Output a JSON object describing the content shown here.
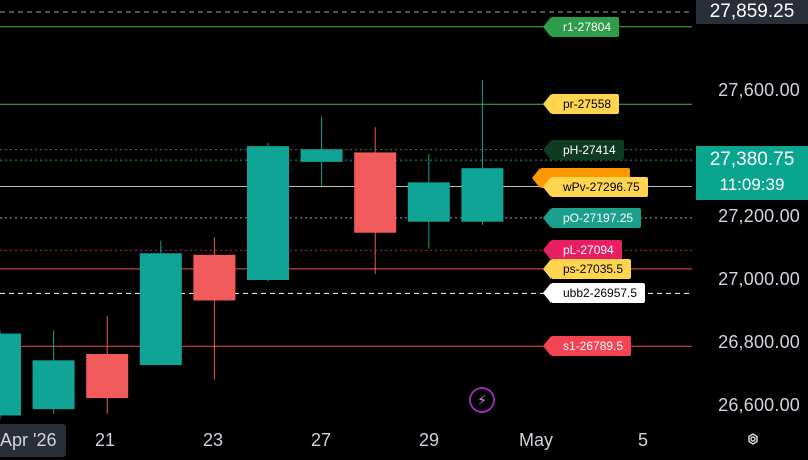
{
  "chart_data": {
    "type": "candlestick",
    "title": "",
    "xlabel": "",
    "ylabel": "",
    "ylim": [
      26540,
      27885
    ],
    "x_ticks": [
      "Apr '26",
      "21",
      "23",
      "27",
      "29",
      "May",
      "5"
    ],
    "y_ticks": [
      "26,600.00",
      "26,800.00",
      "27,000.00",
      "27,200.00",
      "27,600.00"
    ],
    "candles": [
      {
        "o": 26570,
        "h": 26840,
        "l": 26560,
        "c": 26830
      },
      {
        "o": 26590,
        "h": 26840,
        "l": 26575,
        "c": 26745
      },
      {
        "o": 26765,
        "h": 26885,
        "l": 26575,
        "c": 26625
      },
      {
        "o": 26730,
        "h": 27125,
        "l": 26730,
        "c": 27085
      },
      {
        "o": 27080,
        "h": 27135,
        "l": 26685,
        "c": 26935
      },
      {
        "o": 27000,
        "h": 27435,
        "l": 26995,
        "c": 27425
      },
      {
        "o": 27375,
        "h": 27520,
        "l": 27300,
        "c": 27415
      },
      {
        "o": 27405,
        "h": 27485,
        "l": 27020,
        "c": 27150
      },
      {
        "o": 27185,
        "h": 27400,
        "l": 27100,
        "c": 27310
      },
      {
        "o": 27185,
        "h": 27635,
        "l": 27175,
        "c": 27355
      }
    ],
    "levels": [
      {
        "label": "r1-27804",
        "value": 27804,
        "line": "#4caf50",
        "bg": "#2e9d4a",
        "fg": "#ffffff",
        "style": "solid"
      },
      {
        "label": "pr-27558",
        "value": 27558,
        "line": "#4caf50",
        "bg": "#ffd54f",
        "fg": "#000000",
        "style": "solid"
      },
      {
        "label": "pH-27414",
        "value": 27414,
        "line": "#2e7d4f",
        "bg": "#0f3b22",
        "fg": "#ffffff",
        "style": "dotted"
      },
      {
        "label": "wPv-27296.75",
        "value": 27296.75,
        "line": "#bdbdbd",
        "bg": "#ffd54f",
        "fg": "#000000",
        "style": "solid"
      },
      {
        "label": "pO-27197.25",
        "value": 27197.25,
        "line": "#9e9e9e",
        "bg": "#1aa08c",
        "fg": "#ffffff",
        "style": "dotted"
      },
      {
        "label": "pL-27094",
        "value": 27094,
        "line": "#c2185b",
        "bg": "#e91e63",
        "fg": "#ffffff",
        "style": "dotted"
      },
      {
        "label": "ps-27035.5",
        "value": 27035.5,
        "line": "#ef5350",
        "bg": "#ffd54f",
        "fg": "#000000",
        "style": "solid"
      },
      {
        "label": "ubb2-26957.5",
        "value": 26957.5,
        "line": "#ffffff",
        "bg": "#ffffff",
        "fg": "#000000",
        "style": "dashed"
      },
      {
        "label": "s1-26789.5",
        "value": 26789.5,
        "line": "#ef5350",
        "bg": "#f44352",
        "fg": "#ffffff",
        "style": "solid"
      }
    ],
    "hidden_level_tag": {
      "value": 27325,
      "bg": "#ff9800"
    },
    "top_price": {
      "label": "27,859.25",
      "value": 27859.25
    },
    "last_price": {
      "label": "27,380.75",
      "value": 27380.75,
      "countdown": "11:09:39",
      "bg": "#0aa58f"
    },
    "colors": {
      "up": "#10a497",
      "down": "#f25b5b",
      "background": "#000000",
      "text": "#d1d4dc"
    }
  }
}
